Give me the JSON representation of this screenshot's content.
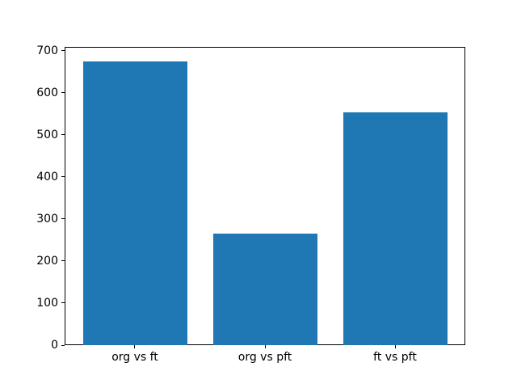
{
  "figure": {
    "background": "#ffffff"
  },
  "chart_data": {
    "type": "bar",
    "title": "",
    "xlabel": "",
    "ylabel": "",
    "categories": [
      "org vs ft",
      "org vs pft",
      "ft vs pft"
    ],
    "values": [
      675,
      265,
      554
    ],
    "yticks": [
      0,
      100,
      200,
      300,
      400,
      500,
      600,
      700
    ],
    "ylim": [
      0,
      709
    ],
    "bar_color": "#1f77b4",
    "spine_color": "#000000",
    "tick_label_color": "#000000",
    "grid": false,
    "legend": null,
    "legend_position": null
  }
}
